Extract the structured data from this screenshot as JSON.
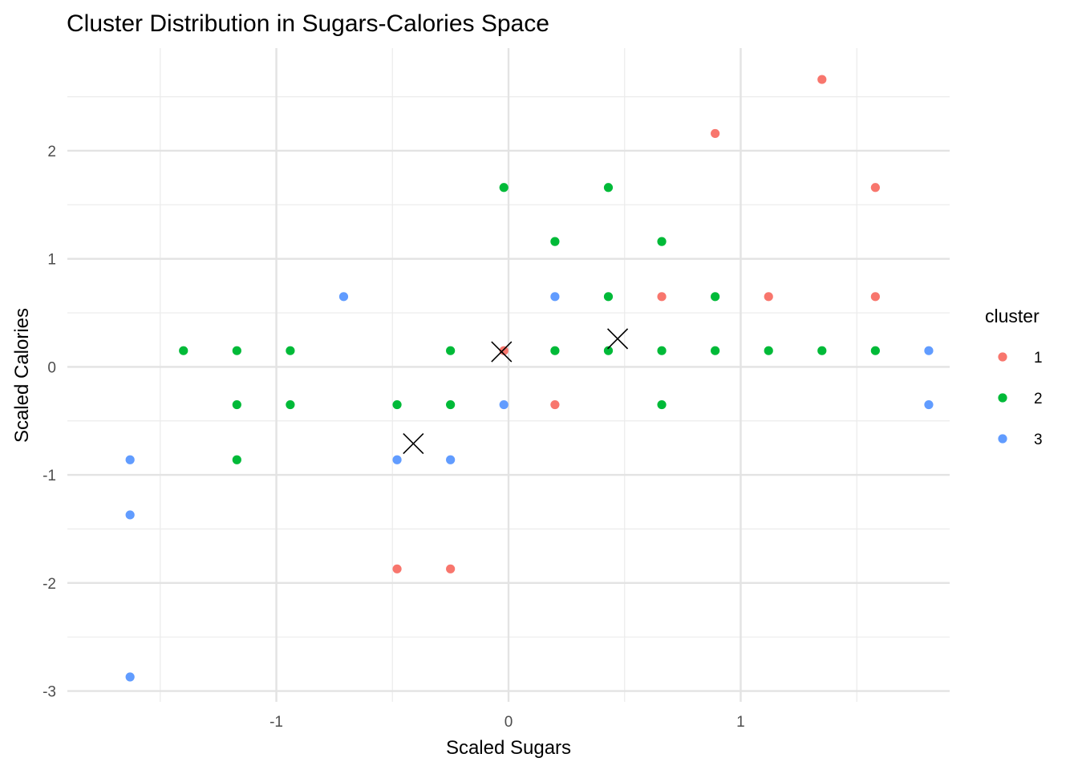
{
  "chart_data": {
    "type": "scatter",
    "title": "Cluster Distribution in Sugars-Calories Space",
    "xlabel": "Scaled Sugars",
    "ylabel": "Scaled Calories",
    "xlim": [
      -1.9,
      1.9
    ],
    "ylim": [
      -3.1,
      2.95
    ],
    "x_ticks": [
      -1,
      0,
      1
    ],
    "x_tick_labels": [
      "-1",
      "0",
      "1"
    ],
    "y_ticks": [
      -3,
      -2,
      -1,
      0,
      1,
      2
    ],
    "y_tick_labels": [
      "-3",
      "-2",
      "-1",
      "0",
      "1",
      "2"
    ],
    "x_minor_ticks": [
      -1.5,
      -0.5,
      0.5,
      1.5
    ],
    "y_minor_ticks": [
      -2.5,
      -1.5,
      -0.5,
      0.5,
      1.5,
      2.5
    ],
    "grid": true,
    "legend": {
      "title": "cluster",
      "position": "right",
      "entries": [
        "1",
        "2",
        "3"
      ]
    },
    "colors": {
      "1": "#F8766D",
      "2": "#00BA38",
      "3": "#619CFF",
      "centroid": "#000000"
    },
    "series": [
      {
        "name": "1",
        "points": [
          [
            -0.02,
            0.15
          ],
          [
            0.2,
            -0.35
          ],
          [
            0.66,
            0.65
          ],
          [
            0.89,
            2.16
          ],
          [
            1.12,
            0.65
          ],
          [
            1.35,
            2.66
          ],
          [
            1.58,
            1.66
          ],
          [
            1.58,
            0.65
          ],
          [
            -0.48,
            -1.87
          ],
          [
            -0.25,
            -1.87
          ]
        ]
      },
      {
        "name": "2",
        "points": [
          [
            -1.4,
            0.15
          ],
          [
            -1.17,
            0.15
          ],
          [
            -1.17,
            -0.35
          ],
          [
            -1.17,
            -0.86
          ],
          [
            -0.94,
            0.15
          ],
          [
            -0.94,
            -0.35
          ],
          [
            -0.48,
            -0.35
          ],
          [
            -0.25,
            0.15
          ],
          [
            -0.25,
            -0.35
          ],
          [
            -0.02,
            1.66
          ],
          [
            0.2,
            1.16
          ],
          [
            0.2,
            0.15
          ],
          [
            0.43,
            1.66
          ],
          [
            0.43,
            0.65
          ],
          [
            0.43,
            0.15
          ],
          [
            0.66,
            1.16
          ],
          [
            0.66,
            0.15
          ],
          [
            0.66,
            -0.35
          ],
          [
            0.89,
            0.65
          ],
          [
            0.89,
            0.15
          ],
          [
            1.12,
            0.15
          ],
          [
            1.35,
            0.15
          ],
          [
            1.58,
            0.15
          ]
        ]
      },
      {
        "name": "3",
        "points": [
          [
            -1.63,
            -0.86
          ],
          [
            -1.63,
            -1.37
          ],
          [
            -1.63,
            -2.87
          ],
          [
            -0.71,
            0.65
          ],
          [
            -0.48,
            -0.86
          ],
          [
            -0.25,
            -0.86
          ],
          [
            -0.02,
            -0.35
          ],
          [
            0.2,
            0.65
          ],
          [
            1.81,
            0.15
          ],
          [
            1.81,
            -0.35
          ]
        ]
      }
    ],
    "centroids": [
      [
        -0.41,
        -0.71
      ],
      [
        -0.03,
        0.14
      ],
      [
        0.47,
        0.26
      ]
    ]
  }
}
